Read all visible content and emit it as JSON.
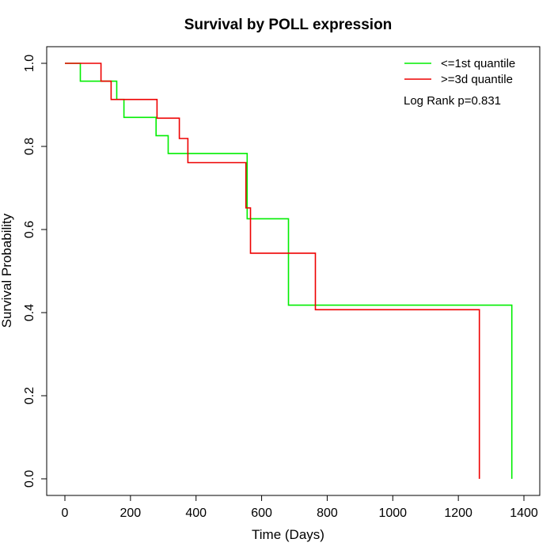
{
  "chart_data": {
    "type": "line",
    "title": "Survival by POLL expression",
    "xlabel": "Time (Days)",
    "ylabel": "Survival Probability",
    "xlim": [
      0,
      1400
    ],
    "ylim": [
      0,
      1.0
    ],
    "x_ticks": [
      "0",
      "200",
      "400",
      "600",
      "800",
      "1000",
      "1200",
      "1400"
    ],
    "y_ticks": [
      "0.0",
      "0.2",
      "0.4",
      "0.6",
      "0.8",
      "1.0"
    ],
    "x_tick_values": [
      0,
      200,
      400,
      600,
      800,
      1000,
      1200,
      1400
    ],
    "y_tick_values": [
      0,
      0.2,
      0.4,
      0.6,
      0.8,
      1.0
    ],
    "legend_position": "top-right",
    "annotation": "Log Rank p=0.831",
    "series": [
      {
        "name": "<=1st quantile",
        "color": "#00ee00",
        "step": true,
        "x": [
          0,
          47,
          47,
          158,
          158,
          180,
          180,
          278,
          278,
          315,
          315,
          556,
          556,
          682,
          682,
          1363,
          1363
        ],
        "y": [
          1.0,
          1.0,
          0.957,
          0.957,
          0.913,
          0.913,
          0.87,
          0.87,
          0.826,
          0.826,
          0.783,
          0.783,
          0.626,
          0.626,
          0.418,
          0.418,
          0.0
        ]
      },
      {
        "name": ">=3d quantile",
        "color": "#ee0000",
        "step": true,
        "x": [
          0,
          110,
          110,
          141,
          141,
          281,
          281,
          349,
          349,
          375,
          375,
          552,
          552,
          566,
          566,
          764,
          764,
          1264,
          1264
        ],
        "y": [
          1.0,
          1.0,
          0.957,
          0.957,
          0.913,
          0.913,
          0.868,
          0.868,
          0.819,
          0.819,
          0.761,
          0.761,
          0.652,
          0.652,
          0.543,
          0.543,
          0.407,
          0.407,
          0.0
        ]
      }
    ]
  }
}
